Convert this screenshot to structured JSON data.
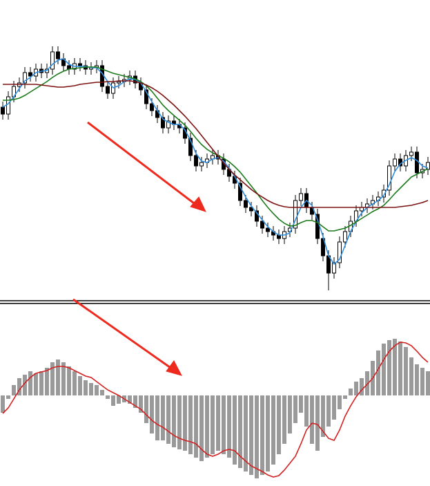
{
  "chart_data": [
    {
      "type": "candlestick",
      "ylim": [
        0,
        440
      ],
      "color": "#000000",
      "open": [
        285,
        275,
        300,
        315,
        320,
        335,
        330,
        340,
        335,
        340,
        365,
        355,
        345,
        340,
        348,
        345,
        340,
        342,
        345,
        315,
        305,
        320,
        322,
        325,
        330,
        320,
        310,
        290,
        280,
        270,
        255,
        265,
        260,
        255,
        240,
        215,
        200,
        205,
        210,
        215,
        210,
        195,
        185,
        175,
        150,
        140,
        135,
        120,
        110,
        105,
        100,
        95,
        105,
        110,
        150,
        160,
        140,
        130,
        95,
        70,
        45,
        60,
        90,
        105,
        120,
        135,
        140,
        145,
        150,
        155,
        165,
        200,
        210,
        200,
        215,
        220,
        190,
        195
      ],
      "high": [
        293,
        308,
        323,
        328,
        343,
        343,
        348,
        348,
        348,
        373,
        373,
        363,
        353,
        356,
        356,
        353,
        350,
        353,
        353,
        323,
        328,
        330,
        333,
        338,
        338,
        328,
        318,
        298,
        288,
        278,
        273,
        273,
        268,
        263,
        248,
        223,
        213,
        218,
        223,
        223,
        218,
        203,
        193,
        183,
        158,
        148,
        143,
        128,
        118,
        113,
        108,
        113,
        118,
        158,
        168,
        168,
        148,
        138,
        103,
        78,
        68,
        98,
        113,
        128,
        143,
        148,
        153,
        158,
        163,
        173,
        208,
        218,
        218,
        223,
        228,
        228,
        203,
        213
      ],
      "low": [
        267,
        267,
        292,
        307,
        312,
        322,
        322,
        327,
        327,
        332,
        347,
        337,
        332,
        332,
        337,
        332,
        332,
        334,
        307,
        297,
        297,
        312,
        314,
        317,
        312,
        302,
        282,
        272,
        262,
        247,
        247,
        252,
        247,
        232,
        207,
        192,
        192,
        197,
        202,
        202,
        187,
        177,
        167,
        142,
        132,
        127,
        112,
        102,
        97,
        92,
        87,
        87,
        97,
        102,
        142,
        132,
        122,
        87,
        62,
        20,
        37,
        52,
        82,
        97,
        112,
        127,
        132,
        137,
        142,
        147,
        157,
        192,
        192,
        192,
        207,
        182,
        182,
        187
      ],
      "close": [
        275,
        300,
        315,
        320,
        335,
        330,
        340,
        335,
        340,
        365,
        355,
        345,
        340,
        348,
        345,
        340,
        342,
        345,
        315,
        305,
        320,
        322,
        325,
        330,
        320,
        310,
        290,
        280,
        270,
        255,
        265,
        260,
        255,
        240,
        215,
        200,
        205,
        210,
        215,
        210,
        195,
        185,
        175,
        150,
        140,
        135,
        120,
        110,
        105,
        100,
        95,
        105,
        110,
        150,
        160,
        140,
        130,
        95,
        70,
        45,
        60,
        90,
        105,
        120,
        135,
        140,
        145,
        150,
        155,
        165,
        200,
        210,
        200,
        215,
        220,
        190,
        195,
        205
      ],
      "series": [
        {
          "color": "#2f8ee0",
          "values": [
            285,
            290,
            300,
            312,
            323,
            328,
            335,
            337,
            338,
            347,
            353,
            355,
            347,
            344,
            344,
            344,
            342,
            342,
            334,
            322,
            313,
            316,
            322,
            326,
            325,
            320,
            307,
            293,
            280,
            268,
            263,
            260,
            260,
            252,
            237,
            218,
            207,
            205,
            210,
            212,
            207,
            197,
            185,
            170,
            155,
            142,
            132,
            122,
            112,
            105,
            100,
            100,
            103,
            122,
            140,
            150,
            143,
            122,
            98,
            70,
            58,
            65,
            85,
            105,
            120,
            132,
            140,
            145,
            150,
            157,
            173,
            192,
            203,
            208,
            212,
            208,
            200,
            197
          ]
        },
        {
          "color": "#1a7a1a",
          "values": [
            295,
            295,
            296,
            298,
            302,
            307,
            312,
            317,
            322,
            328,
            333,
            337,
            340,
            341,
            342,
            343,
            343,
            343,
            340,
            337,
            334,
            332,
            330,
            328,
            326,
            322,
            316,
            308,
            298,
            288,
            280,
            273,
            266,
            259,
            250,
            240,
            231,
            224,
            219,
            215,
            211,
            206,
            199,
            191,
            181,
            171,
            161,
            150,
            140,
            131,
            123,
            117,
            113,
            114,
            118,
            121,
            121,
            118,
            112,
            106,
            106,
            108,
            110,
            114,
            119,
            124,
            129,
            134,
            138,
            143,
            151,
            160,
            168,
            176,
            184,
            188,
            192,
            196
          ]
        },
        {
          "color": "#7a1010",
          "values": [
            318,
            318,
            318,
            318,
            318,
            318,
            318,
            317,
            316,
            315,
            314,
            314,
            315,
            316,
            318,
            319,
            320,
            321,
            321,
            322,
            322,
            323,
            323,
            323,
            322,
            320,
            317,
            313,
            308,
            302,
            295,
            288,
            280,
            272,
            263,
            254,
            244,
            234,
            224,
            214,
            204,
            195,
            187,
            180,
            173,
            166,
            160,
            155,
            150,
            146,
            143,
            141,
            140,
            140,
            140,
            140,
            140,
            140,
            140,
            140,
            140,
            140,
            140,
            140,
            140,
            140,
            140,
            140,
            140,
            140,
            140,
            140,
            141,
            142,
            143,
            145,
            147,
            150
          ]
        }
      ]
    },
    {
      "type": "histogram",
      "ylim": [
        -131,
        127
      ],
      "color": "#000000",
      "values": [
        -25,
        -5,
        15,
        25,
        30,
        35,
        32,
        35,
        40,
        48,
        52,
        48,
        42,
        35,
        28,
        22,
        18,
        15,
        8,
        -5,
        -15,
        -12,
        -10,
        -12,
        -18,
        -25,
        -40,
        -55,
        -65,
        -65,
        -70,
        -75,
        -78,
        -80,
        -85,
        -90,
        -95,
        -90,
        -85,
        -80,
        -85,
        -90,
        -100,
        -105,
        -110,
        -115,
        -120,
        -115,
        -110,
        -100,
        -85,
        -70,
        -55,
        -40,
        -25,
        -45,
        -70,
        -80,
        -60,
        -45,
        -35,
        -20,
        -5,
        10,
        20,
        25,
        35,
        50,
        65,
        75,
        80,
        82,
        78,
        70,
        55,
        45,
        40,
        35
      ],
      "series": [
        {
          "color": "#d42020",
          "values": [
            -26,
            -18,
            -5,
            8,
            18,
            26,
            32,
            34,
            36,
            40,
            42,
            42,
            40,
            36,
            32,
            28,
            26,
            20,
            14,
            8,
            4,
            0,
            -5,
            -10,
            -15,
            -20,
            -28,
            -36,
            -42,
            -46,
            -52,
            -58,
            -62,
            -65,
            -67,
            -70,
            -78,
            -85,
            -88,
            -85,
            -80,
            -78,
            -80,
            -88,
            -95,
            -102,
            -106,
            -110,
            -115,
            -118,
            -116,
            -108,
            -98,
            -88,
            -70,
            -50,
            -40,
            -42,
            -52,
            -62,
            -65,
            -50,
            -30,
            -15,
            -2,
            8,
            16,
            25,
            38,
            52,
            64,
            72,
            77,
            76,
            72,
            64,
            55,
            48
          ]
        }
      ]
    }
  ]
}
